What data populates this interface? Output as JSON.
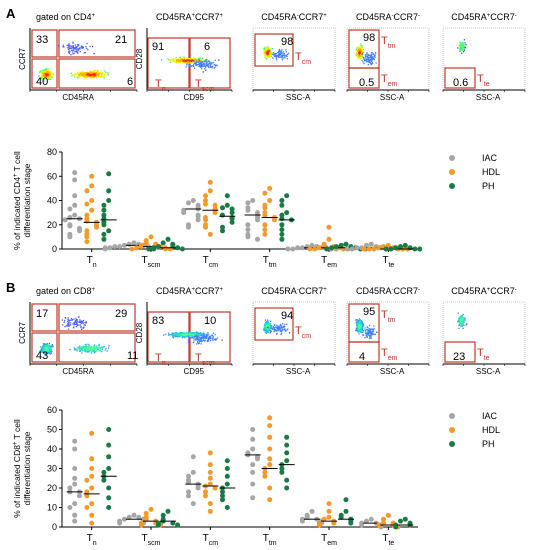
{
  "panels": [
    {
      "letter": "A",
      "flow": {
        "titles": [
          "gated on CD4",
          "CD45RA",
          "CCR7",
          "CD45RA",
          "CCR7",
          "CD45RA",
          "CCR7",
          "CD45RA",
          "CCR7"
        ],
        "title_parts": [
          {
            "t1": "gated on CD4",
            "sup1": "+"
          },
          {
            "t1": "CD45RA",
            "sup1": "+",
            "t2": "CCR7",
            "sup2": "+"
          },
          {
            "t1": "CD45RA",
            "sup1": "-",
            "t2": "CCR7",
            "sup2": "+"
          },
          {
            "t1": "CD45RA",
            "sup1": "-",
            "t2": "CCR7",
            "sup2": "-"
          },
          {
            "t1": "CD45RA",
            "sup1": "+",
            "t2": "CCR7",
            "sup2": "-"
          }
        ],
        "xaxis": [
          "CD45RA",
          "CD95",
          "SSC-A",
          "SSC-A",
          "SSC-A"
        ],
        "yaxis": [
          "CCR7",
          "CD28",
          "",
          "",
          ""
        ],
        "numbers": [
          [
            "33",
            "21",
            "40",
            "6"
          ],
          [
            "91",
            "6"
          ],
          [
            "98"
          ],
          [
            "98",
            "0.5"
          ],
          [
            "0.6"
          ]
        ],
        "gate_labels": [
          [],
          [
            {
              "main": "T",
              "sub": "n"
            },
            {
              "main": "T",
              "sub": "scm"
            }
          ],
          [
            {
              "main": "T",
              "sub": "cm"
            }
          ],
          [
            {
              "main": "T",
              "sub": "tm"
            },
            {
              "main": "T",
              "sub": "em"
            }
          ],
          [
            {
              "main": "T",
              "sub": "te"
            }
          ]
        ]
      },
      "ylabel_line1": "% of indicated CD4",
      "ylabel_sup": "+",
      "ylabel_line1_end": " T cell",
      "ylabel_line2": "differentiation stage"
    },
    {
      "letter": "B",
      "flow": {
        "title_parts": [
          {
            "t1": "gated on CD8",
            "sup1": "+"
          },
          {
            "t1": "CD45RA",
            "sup1": "+",
            "t2": "CCR7",
            "sup2": "+"
          },
          {
            "t1": "CD45RA",
            "sup1": "-",
            "t2": "CCR7",
            "sup2": "+"
          },
          {
            "t1": "CD45RA",
            "sup1": "-",
            "t2": "CCR7",
            "sup2": "-"
          },
          {
            "t1": "CD45RA",
            "sup1": "+",
            "t2": "CCR7",
            "sup2": "-"
          }
        ],
        "xaxis": [
          "CD45RA",
          "CD95",
          "SSC-A",
          "SSC-A",
          "SSC-A"
        ],
        "yaxis": [
          "CCR7",
          "CD28",
          "",
          "",
          ""
        ],
        "numbers": [
          [
            "17",
            "29",
            "43",
            "11"
          ],
          [
            "83",
            "10"
          ],
          [
            "94"
          ],
          [
            "95",
            "4"
          ],
          [
            "23"
          ]
        ],
        "gate_labels": [
          [],
          [
            {
              "main": "T",
              "sub": "n"
            },
            {
              "main": "T",
              "sub": "scm"
            }
          ],
          [
            {
              "main": "T",
              "sub": "cm"
            }
          ],
          [
            {
              "main": "T",
              "sub": "tm"
            },
            {
              "main": "T",
              "sub": "em"
            }
          ],
          [
            {
              "main": "T",
              "sub": "te"
            }
          ]
        ]
      },
      "ylabel_line1": "% of indicated CD8",
      "ylabel_sup": "+",
      "ylabel_line1_end": " T cell",
      "ylabel_line2": "differentiation stage"
    }
  ],
  "colors": {
    "IAC": "#a6a6a6",
    "HDL": "#f39a2a",
    "PH": "#1a7a45",
    "gate": "#c0392b",
    "axis": "#000000"
  },
  "legend": [
    "IAC",
    "HDL",
    "PH"
  ],
  "chart_data": [
    {
      "type": "scatter",
      "panel": "A",
      "categories": [
        {
          "main": "T",
          "sub": "n"
        },
        {
          "main": "T",
          "sub": "scm"
        },
        {
          "main": "T",
          "sub": "cm"
        },
        {
          "main": "T",
          "sub": "tm"
        },
        {
          "main": "T",
          "sub": "em"
        },
        {
          "main": "T",
          "sub": "te"
        }
      ],
      "ylim": [
        0,
        80
      ],
      "yticks": [
        "0",
        "20",
        "40",
        "60",
        "80"
      ],
      "legend_position": "top-right",
      "series": [
        {
          "name": "IAC",
          "medians": [
            25,
            3,
            33,
            28,
            1,
            1
          ],
          "values": [
            [
              63,
              57,
              44,
              36,
              33,
              28,
              26,
              25,
              24,
              20,
              19,
              17,
              15,
              12,
              10
            ],
            [
              5,
              4,
              4,
              3,
              3,
              2,
              2,
              2,
              1,
              1,
              1,
              1,
              0
            ],
            [
              40,
              38,
              36,
              34,
              33,
              32,
              30,
              28,
              27,
              24,
              20,
              18
            ],
            [
              40,
              38,
              34,
              32,
              30,
              28,
              26,
              24,
              20,
              16,
              12,
              10,
              8
            ],
            [
              3,
              2,
              2,
              1,
              1,
              1,
              1,
              0,
              0,
              0,
              0
            ],
            [
              4,
              3,
              2,
              1,
              1,
              1,
              0,
              0,
              0,
              0
            ]
          ]
        },
        {
          "name": "HDL",
          "medians": [
            22,
            2,
            32,
            26,
            1,
            0
          ],
          "values": [
            [
              60,
              52,
              48,
              40,
              37,
              32,
              28,
              25,
              23,
              22,
              20,
              18,
              15,
              12,
              10,
              6
            ],
            [
              10,
              7,
              5,
              4,
              3,
              2,
              2,
              1,
              1,
              0,
              0,
              0
            ],
            [
              55,
              48,
              44,
              40,
              37,
              36,
              33,
              32,
              30,
              26,
              24,
              20,
              18,
              12
            ],
            [
              50,
              46,
              40,
              36,
              34,
              30,
              28,
              26,
              24,
              20,
              16,
              12
            ],
            [
              18,
              8,
              4,
              3,
              2,
              1,
              1,
              0,
              0,
              0,
              0
            ],
            [
              3,
              2,
              1,
              1,
              0,
              0,
              0,
              0,
              0,
              0
            ]
          ]
        },
        {
          "name": "PH",
          "medians": [
            24,
            1,
            27,
            24,
            1,
            0
          ],
          "values": [
            [
              62,
              48,
              40,
              36,
              32,
              28,
              25,
              22,
              20,
              15,
              12,
              8
            ],
            [
              8,
              5,
              4,
              3,
              2,
              1,
              1,
              0,
              0,
              0
            ],
            [
              44,
              36,
              34,
              33,
              30,
              28,
              26,
              25,
              22,
              18,
              15
            ],
            [
              44,
              40,
              36,
              30,
              28,
              25,
              24,
              20,
              16,
              12,
              8
            ],
            [
              4,
              3,
              2,
              2,
              1,
              1,
              0,
              0,
              0
            ],
            [
              3,
              2,
              1,
              1,
              0,
              0,
              0,
              0
            ]
          ]
        }
      ]
    },
    {
      "type": "scatter",
      "panel": "B",
      "categories": [
        {
          "main": "T",
          "sub": "n"
        },
        {
          "main": "T",
          "sub": "scm"
        },
        {
          "main": "T",
          "sub": "cm"
        },
        {
          "main": "T",
          "sub": "tm"
        },
        {
          "main": "T",
          "sub": "em"
        },
        {
          "main": "T",
          "sub": "te"
        }
      ],
      "ylim": [
        0,
        60
      ],
      "yticks": [
        "0",
        "10",
        "20",
        "30",
        "40",
        "50",
        "60"
      ],
      "legend_position": "top-right",
      "series": [
        {
          "name": "IAC",
          "medians": [
            18,
            4,
            22,
            37,
            4,
            2
          ],
          "values": [
            [
              44,
              40,
              30,
              25,
              22,
              20,
              18,
              18,
              16,
              12,
              10,
              6,
              3
            ],
            [
              6,
              5,
              5,
              4,
              4,
              3,
              3,
              2,
              2
            ],
            [
              36,
              28,
              26,
              24,
              23,
              22,
              21,
              20,
              18,
              16,
              12
            ],
            [
              50,
              45,
              40,
              38,
              37,
              36,
              35,
              32,
              28,
              22,
              15
            ],
            [
              8,
              6,
              5,
              4,
              4,
              3,
              3,
              2
            ],
            [
              4,
              3,
              2,
              2,
              1,
              1,
              0
            ]
          ]
        },
        {
          "name": "HDL",
          "medians": [
            17,
            3,
            21,
            30,
            3,
            1
          ],
          "values": [
            [
              48,
              35,
              30,
              26,
              24,
              20,
              18,
              16,
              12,
              10,
              6,
              2
            ],
            [
              9,
              7,
              5,
              4,
              3,
              2,
              2,
              1,
              1
            ],
            [
              38,
              32,
              28,
              25,
              22,
              21,
              20,
              18,
              16,
              12,
              8
            ],
            [
              56,
              52,
              46,
              40,
              35,
              32,
              30,
              28,
              26,
              20,
              14
            ],
            [
              12,
              8,
              5,
              4,
              3,
              2,
              2,
              1
            ],
            [
              6,
              4,
              2,
              2,
              1,
              1,
              0
            ]
          ]
        },
        {
          "name": "PH",
          "medians": [
            26,
            3,
            20,
            32,
            4,
            1
          ],
          "values": [
            [
              50,
              42,
              36,
              30,
              28,
              26,
              24,
              20,
              15,
              10
            ],
            [
              8,
              6,
              4,
              3,
              2,
              2,
              1,
              1
            ],
            [
              34,
              30,
              26,
              22,
              20,
              18,
              16,
              14,
              10
            ],
            [
              46,
              42,
              38,
              34,
              32,
              30,
              28,
              24,
              20
            ],
            [
              14,
              8,
              6,
              5,
              4,
              3,
              2
            ],
            [
              4,
              3,
              2,
              1,
              1,
              0
            ]
          ]
        }
      ]
    }
  ]
}
